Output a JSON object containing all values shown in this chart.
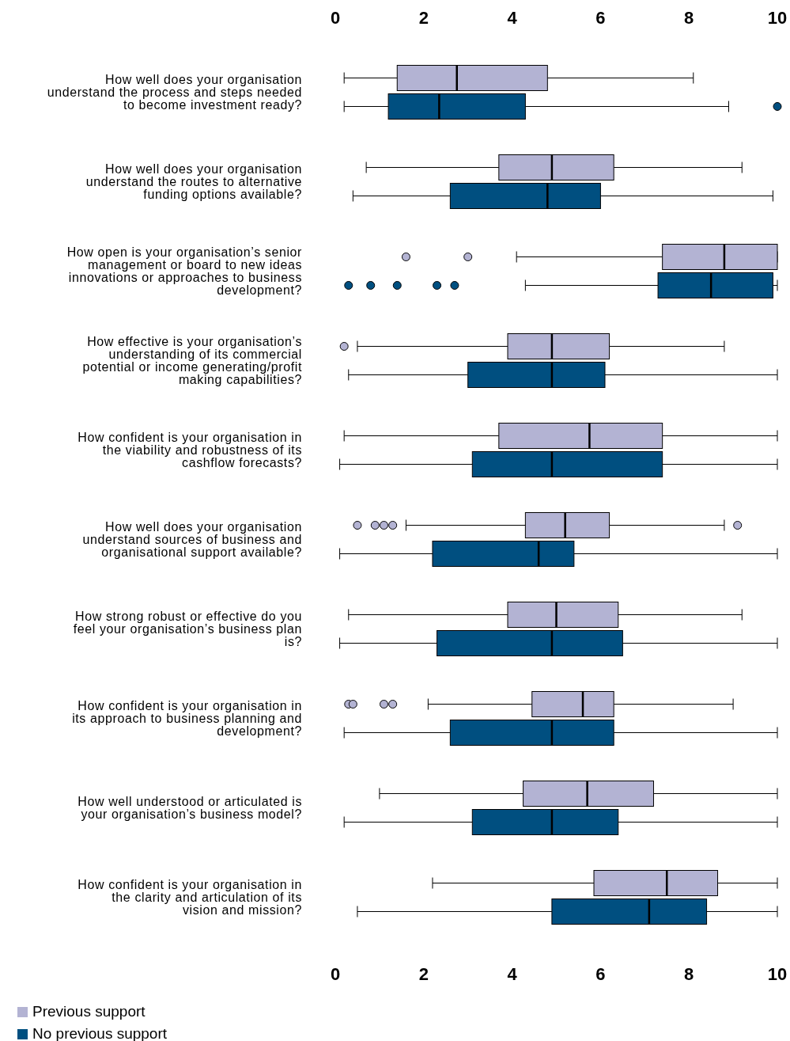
{
  "chart_data": {
    "type": "box",
    "orientation": "horizontal",
    "categories": [
      "How well does your organisation understand the process and steps needed to become investment ready?",
      "How well does your organisation understand the routes to alternative funding options available?",
      "How open is your organisation’s senior management or board to new ideas innovations or approaches to business development?",
      "How effective is your organisation’s understanding of its commercial potential or income generating/profit making capabilities?",
      "How confident is your organisation in the viability and robustness of its cashflow forecasts?",
      "How well does your organisation understand sources of business and organisational support available?",
      "How strong robust or effective do you feel your organisation’s business plan is?",
      "How confident is your organisation in its approach to business planning and development?",
      "How well understood or articulated is your organisation’s business model?",
      "How confident is your organisation in the clarity and articulation of its vision and mission?"
    ],
    "series": [
      {
        "name": "Previous support",
        "color": "#b3b3d3",
        "boxes": [
          {
            "low": 0.2,
            "q1": 1.4,
            "median": 2.75,
            "q3": 4.8,
            "high": 8.1
          },
          {
            "low": 0.7,
            "q1": 3.7,
            "median": 4.9,
            "q3": 6.3,
            "high": 9.2
          },
          {
            "low": 4.1,
            "q1": 7.4,
            "median": 8.8,
            "q3": 10,
            "high": 10,
            "outliers": [
              1.6,
              3.0
            ]
          },
          {
            "low": 0.5,
            "q1": 3.9,
            "median": 4.9,
            "q3": 6.2,
            "high": 8.8,
            "outliers": [
              0.2
            ]
          },
          {
            "low": 0.2,
            "q1": 3.7,
            "median": 5.75,
            "q3": 7.4,
            "high": 10
          },
          {
            "low": 1.6,
            "q1": 4.3,
            "median": 5.2,
            "q3": 6.2,
            "high": 8.8,
            "outliers": [
              0.5,
              0.9,
              1.1,
              1.3,
              9.1
            ]
          },
          {
            "low": 0.3,
            "q1": 3.9,
            "median": 5.0,
            "q3": 6.4,
            "high": 9.2
          },
          {
            "low": 2.1,
            "q1": 4.45,
            "median": 5.6,
            "q3": 6.3,
            "high": 9.0,
            "outliers": [
              0.3,
              0.4,
              1.1,
              1.3
            ]
          },
          {
            "low": 1.0,
            "q1": 4.25,
            "median": 5.7,
            "q3": 7.2,
            "high": 10
          },
          {
            "low": 2.2,
            "q1": 5.85,
            "median": 7.5,
            "q3": 8.65,
            "high": 10
          }
        ]
      },
      {
        "name": "No previous support",
        "color": "#004f80",
        "boxes": [
          {
            "low": 0.2,
            "q1": 1.2,
            "median": 2.35,
            "q3": 4.3,
            "high": 8.9,
            "outliers": [
              10
            ]
          },
          {
            "low": 0.4,
            "q1": 2.6,
            "median": 4.8,
            "q3": 6.0,
            "high": 9.9
          },
          {
            "low": 4.3,
            "q1": 7.3,
            "median": 8.5,
            "q3": 9.9,
            "high": 10,
            "outliers": [
              0.3,
              0.8,
              1.4,
              2.3,
              2.7
            ]
          },
          {
            "low": 0.3,
            "q1": 3.0,
            "median": 4.9,
            "q3": 6.1,
            "high": 10
          },
          {
            "low": 0.1,
            "q1": 3.1,
            "median": 4.9,
            "q3": 7.4,
            "high": 10
          },
          {
            "low": 0.1,
            "q1": 2.2,
            "median": 4.6,
            "q3": 5.4,
            "high": 10
          },
          {
            "low": 0.1,
            "q1": 2.3,
            "median": 4.9,
            "q3": 6.5,
            "high": 10
          },
          {
            "low": 0.2,
            "q1": 2.6,
            "median": 4.9,
            "q3": 6.3,
            "high": 10
          },
          {
            "low": 0.2,
            "q1": 3.1,
            "median": 4.9,
            "q3": 6.4,
            "high": 10
          },
          {
            "low": 0.5,
            "q1": 4.9,
            "median": 7.1,
            "q3": 8.4,
            "high": 10
          }
        ]
      }
    ],
    "xlim": [
      0,
      10
    ],
    "xticks": [
      0,
      2,
      4,
      6,
      8,
      10
    ],
    "x2lim": [
      0,
      10
    ],
    "x2ticks": [
      0,
      2,
      4,
      6,
      8,
      10
    ],
    "grid": false,
    "legend": "bottom left",
    "marker": "circle"
  }
}
